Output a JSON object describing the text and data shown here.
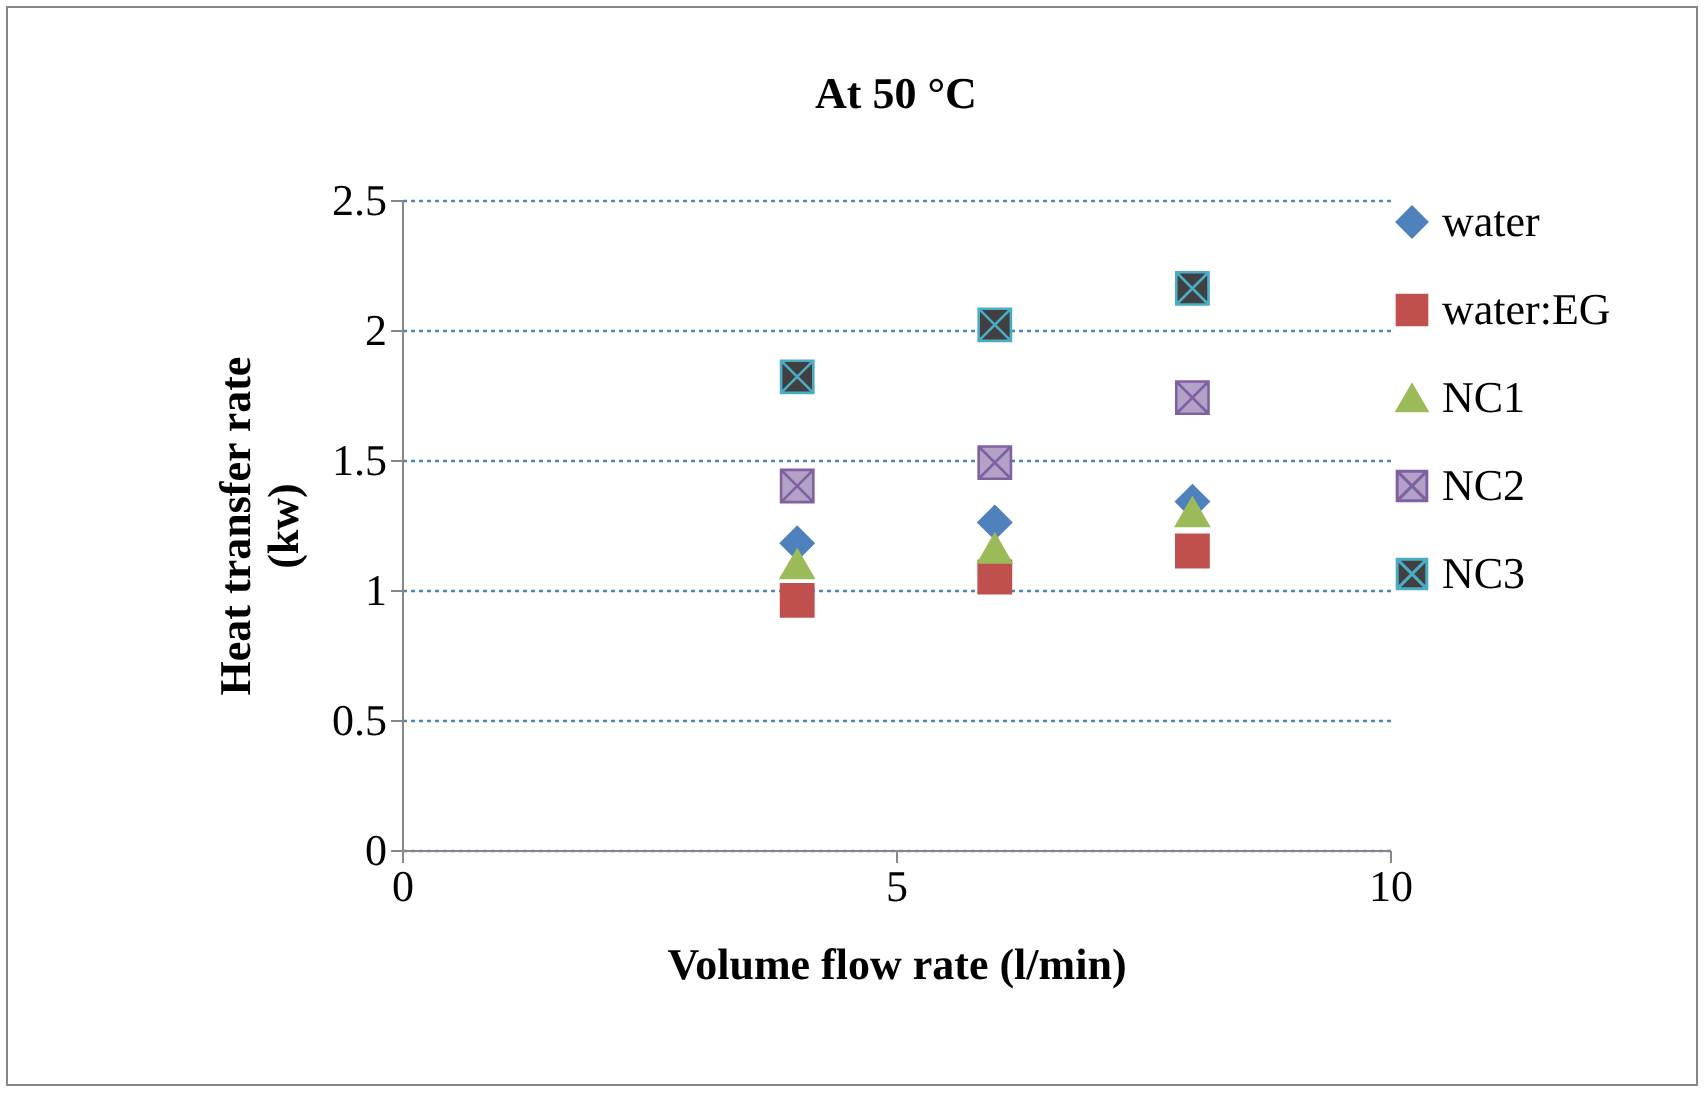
{
  "chart_data": {
    "type": "scatter",
    "title": "At 50 °C",
    "xlabel": "Volume   flow rate (l/min)",
    "ylabel": "Heat  transfer rate\n(kw)",
    "x": [
      4,
      6,
      8
    ],
    "series": [
      {
        "name": "water",
        "color": "#4f81bd",
        "marker": "diamond",
        "values": [
          1.18,
          1.26,
          1.34
        ]
      },
      {
        "name": "water:EG",
        "color": "#c0504d",
        "marker": "square",
        "values": [
          0.96,
          1.05,
          1.15
        ]
      },
      {
        "name": "NC1",
        "color": "#9bbb59",
        "marker": "triangle",
        "values": [
          1.1,
          1.16,
          1.3
        ]
      },
      {
        "name": "NC2",
        "color": "#b3a2c7",
        "marker": "cross",
        "values": [
          1.4,
          1.49,
          1.74
        ]
      },
      {
        "name": "NC3",
        "color": "#404040",
        "marker": "cross",
        "values": [
          1.82,
          2.02,
          2.16
        ]
      }
    ],
    "xlim": [
      0,
      10
    ],
    "xticks": [
      0,
      5,
      10
    ],
    "ylim": [
      0,
      2.5
    ],
    "yticks": [
      0,
      0.5,
      1,
      1.5,
      2,
      2.5
    ],
    "grid": "y",
    "legend": "right"
  }
}
